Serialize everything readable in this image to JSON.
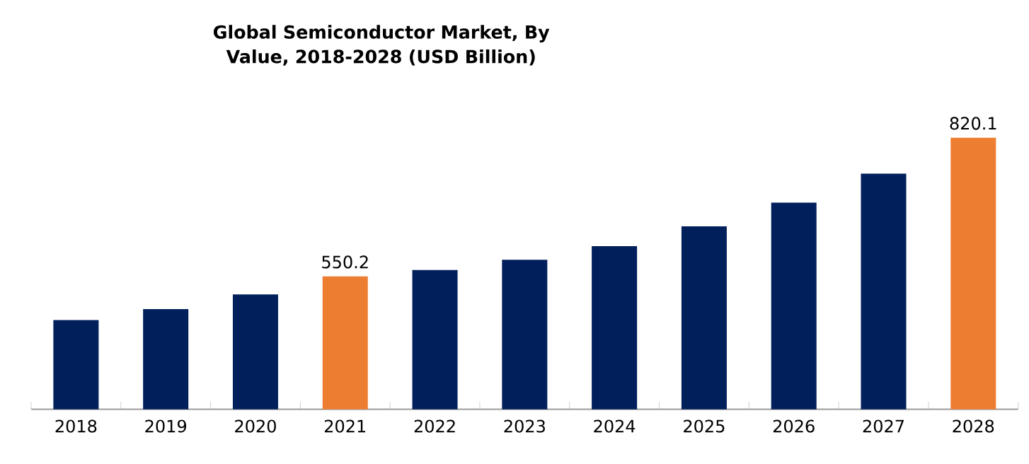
{
  "chart_data": {
    "type": "bar",
    "title": "Global Semiconductor Market, By Value, 2018-2028 (USD Billion)",
    "categories": [
      "2018",
      "2019",
      "2020",
      "2021",
      "2022",
      "2023",
      "2024",
      "2025",
      "2026",
      "2027",
      "2028"
    ],
    "values": [
      465.2,
      486.4,
      515.2,
      550.2,
      562.6,
      582.6,
      608.9,
      647.6,
      693.8,
      750.1,
      820.1
    ],
    "colors": [
      "#001f5b",
      "#001f5b",
      "#001f5b",
      "#ed7d31",
      "#001f5b",
      "#001f5b",
      "#001f5b",
      "#001f5b",
      "#001f5b",
      "#001f5b",
      "#ed7d31"
    ],
    "value_labels": [
      null,
      null,
      null,
      "550.2",
      null,
      null,
      null,
      null,
      null,
      null,
      "820.1"
    ],
    "ylim": [
      291.5,
      820.1
    ],
    "tick_labels": "x",
    "grid": false
  }
}
